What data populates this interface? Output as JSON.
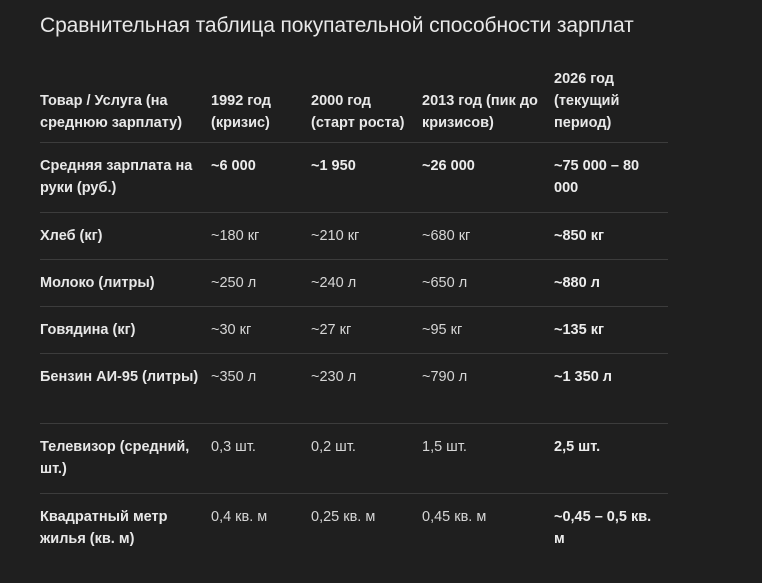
{
  "title": "Сравнительная таблица покупательной способности зарплат",
  "headers": [
    "Товар / Услуга (на среднюю зарплату)",
    "1992 год (кризис)",
    "2000 год (старт роста)",
    "2013 год (пик до кризисов)",
    "2026 год (текущий период)"
  ],
  "rows": [
    {
      "label": "Средняя зарплата на руки (руб.)",
      "v1992": "~6 000",
      "v2000": "~1 950",
      "v2013": "~26 000",
      "v2026": "~75 000 – 80 000"
    },
    {
      "label": "Хлеб (кг)",
      "v1992": "~180 кг",
      "v2000": "~210 кг",
      "v2013": "~680 кг",
      "v2026": "~850 кг"
    },
    {
      "label": "Молоко (литры)",
      "v1992": "~250 л",
      "v2000": "~240 л",
      "v2013": "~650 л",
      "v2026": "~880 л"
    },
    {
      "label": "Говядина (кг)",
      "v1992": "~30 кг",
      "v2000": "~27 кг",
      "v2013": "~95 кг",
      "v2026": "~135 кг"
    },
    {
      "label": "Бензин АИ-95 (литры)",
      "v1992": "~350 л",
      "v2000": "~230 л",
      "v2013": "~790 л",
      "v2026": "~1 350 л"
    },
    {
      "label": "Телевизор (средний, шт.)",
      "v1992": "0,3 шт.",
      "v2000": "0,2 шт.",
      "v2013": "1,5 шт.",
      "v2026": "2,5 шт."
    },
    {
      "label": "Квадратный метр жилья (кв. м)",
      "v1992": "0,4 кв. м",
      "v2000": "0,25 кв. м",
      "v2013": "0,45 кв. м",
      "v2026": "~0,45 – 0,5 кв. м"
    }
  ]
}
